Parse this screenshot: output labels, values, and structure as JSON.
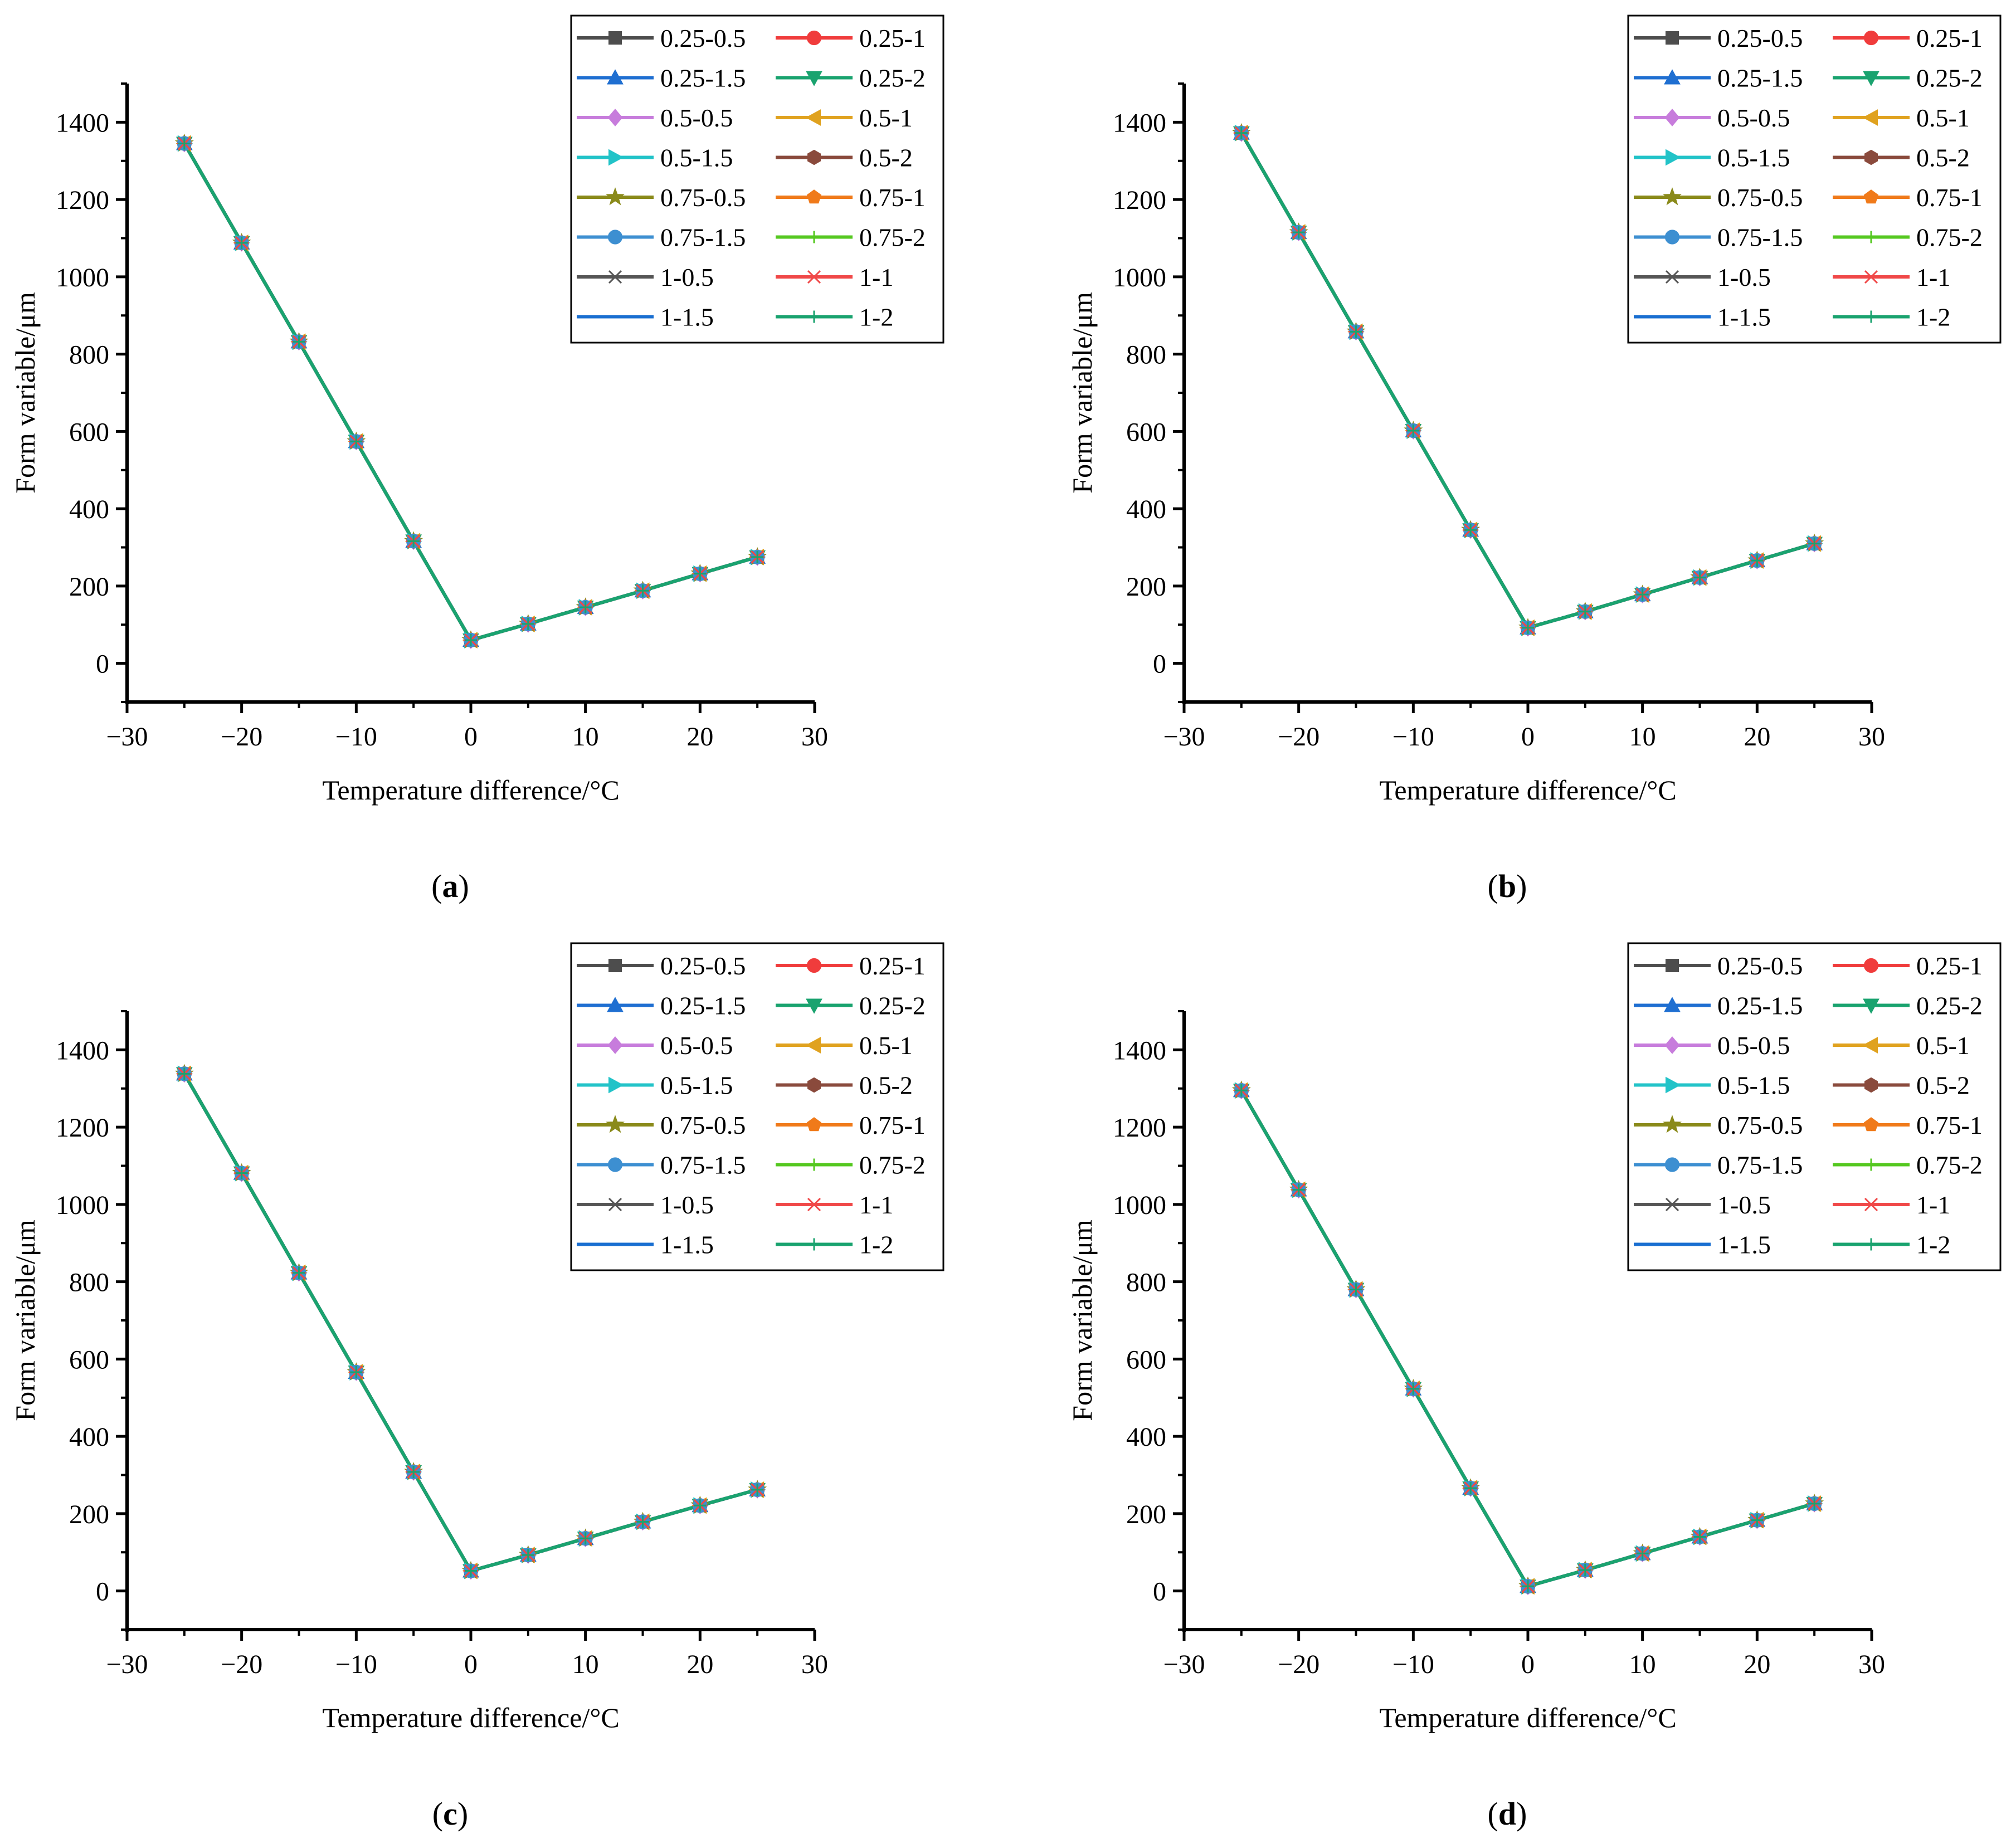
{
  "figure": {
    "x_axis_title": "Temperature difference/°C",
    "y_axis_title": "Form variable/μm",
    "x_ticks": [
      -30,
      -20,
      -10,
      0,
      10,
      20,
      30
    ],
    "y_ticks": [
      0,
      200,
      400,
      600,
      800,
      1000,
      1200,
      1400
    ]
  },
  "chart_data": [
    {
      "type": "line",
      "caption": "(a)",
      "xlabel": "Temperature difference/°C",
      "ylabel": "Form variable/μm",
      "xlim": [
        -30,
        30
      ],
      "ylim": [
        -100,
        1500
      ],
      "legend_position": "top-right",
      "x": [
        -25,
        -20,
        -15,
        -10,
        -5,
        0,
        5,
        10,
        15,
        20,
        25
      ],
      "values": [
        1345,
        1088,
        832,
        574,
        316,
        60,
        102,
        145,
        188,
        232,
        275
      ]
    },
    {
      "type": "line",
      "caption": "(b)",
      "xlabel": "Temperature difference/°C",
      "ylabel": "Form variable/μm",
      "xlim": [
        -30,
        30
      ],
      "ylim": [
        -100,
        1500
      ],
      "legend_position": "top-right",
      "x": [
        -25,
        -20,
        -15,
        -10,
        -5,
        0,
        5,
        10,
        15,
        20,
        25
      ],
      "values": [
        1372,
        1115,
        858,
        602,
        345,
        92,
        134,
        178,
        222,
        266,
        310
      ]
    },
    {
      "type": "line",
      "caption": "(c)",
      "xlabel": "Temperature difference/°C",
      "ylabel": "Form variable/μm",
      "xlim": [
        -30,
        30
      ],
      "ylim": [
        -100,
        1500
      ],
      "legend_position": "top-right",
      "x": [
        -25,
        -20,
        -15,
        -10,
        -5,
        0,
        5,
        10,
        15,
        20,
        25
      ],
      "values": [
        1338,
        1081,
        823,
        566,
        308,
        52,
        93,
        136,
        179,
        221,
        262
      ]
    },
    {
      "type": "line",
      "caption": "(d)",
      "xlabel": "Temperature difference/°C",
      "ylabel": "Form variable/μm",
      "xlim": [
        -30,
        30
      ],
      "ylim": [
        -100,
        1500
      ],
      "legend_position": "top-right",
      "x": [
        -25,
        -20,
        -15,
        -10,
        -5,
        0,
        5,
        10,
        15,
        20,
        25
      ],
      "values": [
        1295,
        1038,
        780,
        523,
        266,
        12,
        54,
        97,
        140,
        183,
        226
      ]
    }
  ],
  "series": [
    {
      "name": "0.25-0.5",
      "color": "#4d4d4d",
      "marker": "square"
    },
    {
      "name": "0.25-1",
      "color": "#f03c3c",
      "marker": "circle"
    },
    {
      "name": "0.25-1.5",
      "color": "#1f6fd1",
      "marker": "triangle-up"
    },
    {
      "name": "0.25-2",
      "color": "#1aa36f",
      "marker": "triangle-down"
    },
    {
      "name": "0.5-0.5",
      "color": "#c77cdc",
      "marker": "diamond"
    },
    {
      "name": "0.5-1",
      "color": "#e0a21f",
      "marker": "triangle-left"
    },
    {
      "name": "0.5-1.5",
      "color": "#22c3c8",
      "marker": "triangle-right"
    },
    {
      "name": "0.5-2",
      "color": "#8a4a3c",
      "marker": "hexagon"
    },
    {
      "name": "0.75-0.5",
      "color": "#8a8a1a",
      "marker": "star"
    },
    {
      "name": "0.75-1",
      "color": "#f07a1a",
      "marker": "pentagon"
    },
    {
      "name": "0.75-1.5",
      "color": "#3d8fd1",
      "marker": "sphere"
    },
    {
      "name": "0.75-2",
      "color": "#55c820",
      "marker": "plus"
    },
    {
      "name": "1-0.5",
      "color": "#555555",
      "marker": "x"
    },
    {
      "name": "1-1",
      "color": "#f04848",
      "marker": "asterisk"
    },
    {
      "name": "1-1.5",
      "color": "#1a6fd1",
      "marker": "none"
    },
    {
      "name": "1-2",
      "color": "#1aa36f",
      "marker": "tick"
    }
  ]
}
